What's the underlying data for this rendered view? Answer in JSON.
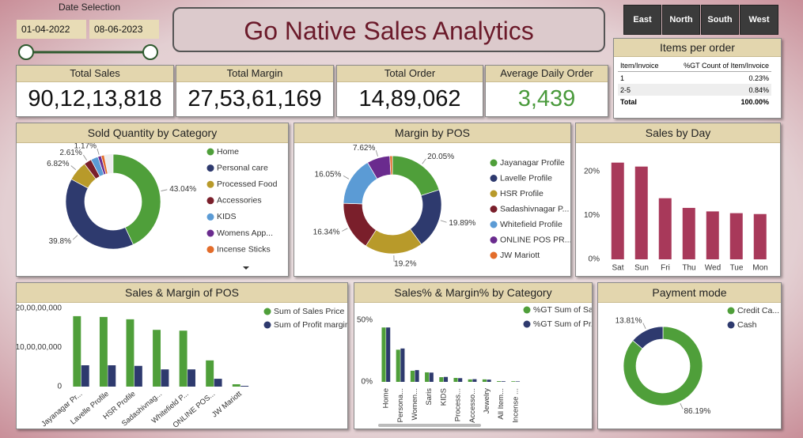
{
  "date_selection": {
    "label": "Date Selection",
    "start": "01-04-2022",
    "end": "08-06-2023"
  },
  "title": "Go Native Sales Analytics",
  "region_buttons": [
    "East",
    "North",
    "South",
    "West"
  ],
  "kpis": [
    {
      "label": "Total Sales",
      "value": "90,12,13,818"
    },
    {
      "label": "Total Margin",
      "value": "27,53,61,169"
    },
    {
      "label": "Total Order",
      "value": "14,89,062"
    },
    {
      "label": "Average Daily Order",
      "value": "3,439"
    }
  ],
  "items_per_order": {
    "title": "Items per order",
    "columns": [
      "Item/Invoice",
      "%GT Count of Item/Invoice"
    ],
    "rows": [
      [
        "1",
        "0.23%"
      ],
      [
        "2-5",
        "0.84%"
      ],
      [
        "Total",
        "100.00%"
      ]
    ]
  },
  "chart_data": [
    {
      "type": "donut",
      "title": "Sold Quantity by Category",
      "categories": [
        "Home",
        "Personal care",
        "Processed Food",
        "Accessories",
        "KIDS",
        "Womens App...",
        "Incense Sticks"
      ],
      "values": [
        43.04,
        39.8,
        6.82,
        2.61,
        2.5,
        1.17,
        1.0
      ],
      "value_labels": [
        "43.04%",
        "39.8%",
        "6.82%",
        "2.61%",
        null,
        "1.17%",
        null
      ],
      "colors": [
        "#4f9f3a",
        "#2e3a6e",
        "#b89a2a",
        "#7a1f2b",
        "#5b9bd5",
        "#6a2b8e",
        "#e36c2a"
      ],
      "legend": "right"
    },
    {
      "type": "donut",
      "title": "Margin by POS",
      "categories": [
        "Jayanagar Profile",
        "Lavelle Profile",
        "HSR Profile",
        "Sadashivnagar P...",
        "Whitefield Profile",
        "ONLINE POS PR...",
        "JW  Mariott"
      ],
      "values": [
        20.05,
        19.89,
        19.2,
        16.34,
        16.05,
        7.62,
        0.85
      ],
      "value_labels": [
        "20.05%",
        "19.89%",
        "19.2%",
        "16.34%",
        "16.05%",
        "7.62%",
        null
      ],
      "colors": [
        "#4f9f3a",
        "#2e3a6e",
        "#b89a2a",
        "#7a1f2b",
        "#5b9bd5",
        "#6a2b8e",
        "#e36c2a"
      ],
      "legend": "right"
    },
    {
      "type": "bar",
      "title": "Sales by Day",
      "categories": [
        "Sat",
        "Sun",
        "Fri",
        "Thu",
        "Wed",
        "Tue",
        "Mon"
      ],
      "values": [
        22,
        21.1,
        13.9,
        11.7,
        10.9,
        10.5,
        10.3
      ],
      "color": "#a8395a",
      "ylim": [
        0,
        25
      ],
      "yticks": [
        {
          "value": 0,
          "label": "0%"
        },
        {
          "value": 10,
          "label": "10%"
        },
        {
          "value": 20,
          "label": "20%"
        }
      ]
    },
    {
      "type": "bar",
      "title": "Sales & Margin of POS",
      "categories": [
        "Jayanagar Pr...",
        "Lavelle Profile",
        "HSR Profile",
        "Sadashivnag...",
        "Whitefield P...",
        "ONLINE POS...",
        "JW Mariott"
      ],
      "series": [
        {
          "name": "Sum of Sales Price",
          "color": "#4f9f3a",
          "values": [
            180000000,
            178000000,
            172000000,
            145000000,
            143000000,
            67000000,
            6000000
          ]
        },
        {
          "name": "Sum of Profit margin",
          "color": "#2e3a6e",
          "values": [
            54500000,
            54500000,
            53000000,
            44000000,
            44000000,
            20000000,
            2000000
          ]
        }
      ],
      "ylim": [
        0,
        200000000
      ],
      "yticks": [
        0,
        {
          "value": 100000000,
          "label": "10,00,00,000"
        },
        {
          "value": 200000000,
          "label": "20,00,00,000"
        }
      ],
      "legend": "right"
    },
    {
      "type": "bar",
      "title": "Sales% & Margin% by Category",
      "categories": [
        "Home",
        "Persona...",
        "Women...",
        "Saris",
        "KIDS",
        "Process...",
        "Accesso...",
        "Jewelry",
        "All Item...",
        "Incense ..."
      ],
      "series": [
        {
          "name": "%GT Sum of Sa...",
          "color": "#4f9f3a",
          "values": [
            44,
            26,
            9,
            7.7,
            3.8,
            3.2,
            2,
            2,
            0.6,
            0.5
          ]
        },
        {
          "name": "%GT Sum of Pr...",
          "color": "#2e3a6e",
          "values": [
            44,
            27,
            9.5,
            7.5,
            4,
            3,
            2.2,
            1.8,
            0.5,
            0.4
          ]
        }
      ],
      "ylim": [
        0,
        55
      ],
      "yticks": [
        {
          "value": 0,
          "label": "0%"
        },
        {
          "value": 50,
          "label": "50%"
        }
      ],
      "legend": "right"
    },
    {
      "type": "donut",
      "title": "Payment mode",
      "categories": [
        "Credit Ca...",
        "Cash"
      ],
      "values": [
        86.19,
        13.81
      ],
      "value_labels": [
        "86.19%",
        "13.81%"
      ],
      "colors": [
        "#4f9f3a",
        "#2e3a6e"
      ],
      "legend": "right"
    }
  ]
}
